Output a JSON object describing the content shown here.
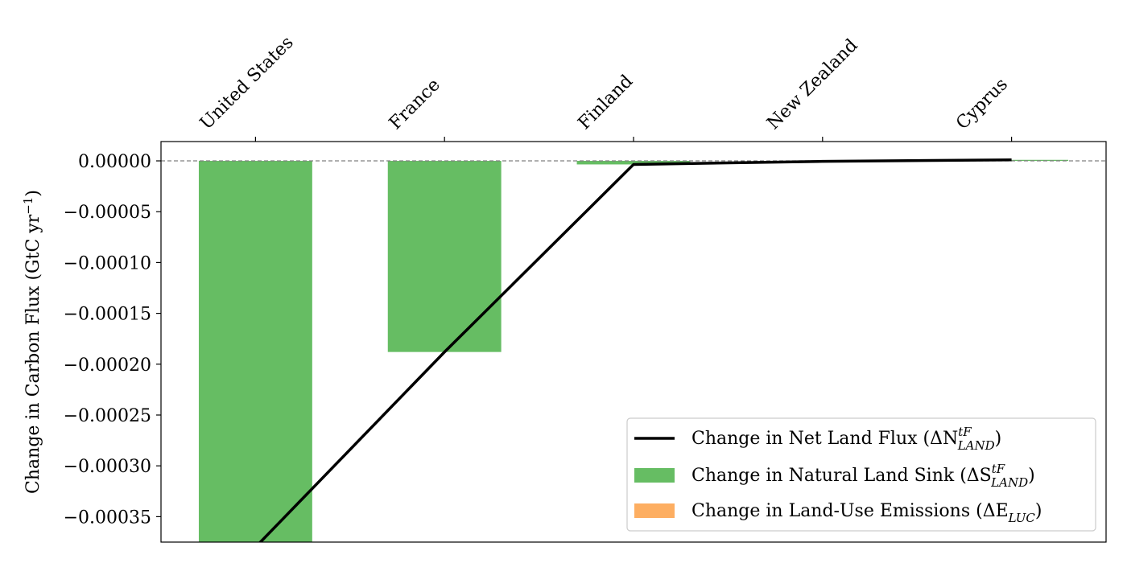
{
  "chart_data": {
    "type": "bar",
    "categories": [
      "United States",
      "France",
      "Finland",
      "New Zealand",
      "Cyprus"
    ],
    "series": [
      {
        "name": "Change in Natural Land Sink",
        "kind": "bar",
        "color": "#66bd63",
        "values": [
          -0.00038,
          -0.000188,
          -3.5e-06,
          -5e-07,
          1e-06
        ]
      },
      {
        "name": "Change in Land-Use Emissions",
        "kind": "bar",
        "color": "#fdae61",
        "values": [
          0,
          0,
          0,
          0,
          0
        ]
      },
      {
        "name": "Change in Net Land Flux",
        "kind": "line",
        "color": "#000000",
        "values": [
          -0.00038,
          -0.000188,
          -3.5e-06,
          -5e-07,
          1e-06
        ]
      }
    ],
    "ylabel": "Change in Carbon Flux (GtC yr",
    "ylabel_sup": "−1",
    "ylabel_close": ")",
    "ylim": [
      -0.000375,
      1.9e-05
    ],
    "yticks": [
      0,
      -5e-05,
      -0.0001,
      -0.00015,
      -0.0002,
      -0.00025,
      -0.0003,
      -0.00035
    ],
    "ytick_labels": [
      "0.00000",
      "−0.00005",
      "−0.00010",
      "−0.00015",
      "−0.00020",
      "−0.00025",
      "−0.00030",
      "−0.00035"
    ],
    "xaxis_position": "top",
    "zero_line": "dashed",
    "legend_position": "lower-right",
    "legend": [
      {
        "base": "Change in Net Land Flux (ΔN",
        "sup": "tF",
        "sub": "LAND",
        "close": ")",
        "marker": "line",
        "color": "#000000"
      },
      {
        "base": "Change in Natural Land Sink (ΔS",
        "sup": "tF",
        "sub": "LAND",
        "close": ")",
        "marker": "patch",
        "color": "#66bd63"
      },
      {
        "base": "Change in Land-Use Emissions (ΔE",
        "sup": "",
        "sub": "LUC",
        "close": ")",
        "marker": "patch",
        "color": "#fdae61"
      }
    ]
  }
}
